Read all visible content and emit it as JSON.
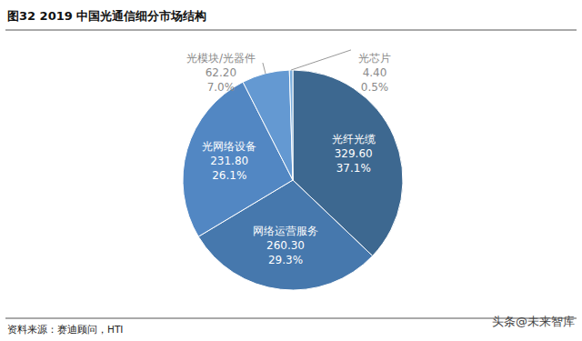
{
  "chart_data": {
    "type": "pie",
    "title": "图32 2019 中国光通信细分市场结构",
    "categories": [
      "光纤光缆",
      "网络运营服务",
      "光网络设备",
      "光模块/光器件",
      "光芯片"
    ],
    "values": [
      329.6,
      260.3,
      231.8,
      62.2,
      4.4
    ],
    "value_labels": [
      "329.60",
      "260.30",
      "231.80",
      "62.20",
      "4.40"
    ],
    "percents": [
      37.1,
      29.3,
      26.1,
      7.0,
      0.5
    ],
    "percent_labels": [
      "37.1%",
      "29.3%",
      "26.1%",
      "7.0%",
      "0.5%"
    ],
    "colors": [
      "#3d6890",
      "#4678ad",
      "#5287c3",
      "#6499d2",
      "#7aaede"
    ],
    "data_labels": true,
    "source": "资料来源：赛迪顾问，HTI",
    "watermark": "头条@未来智库"
  }
}
